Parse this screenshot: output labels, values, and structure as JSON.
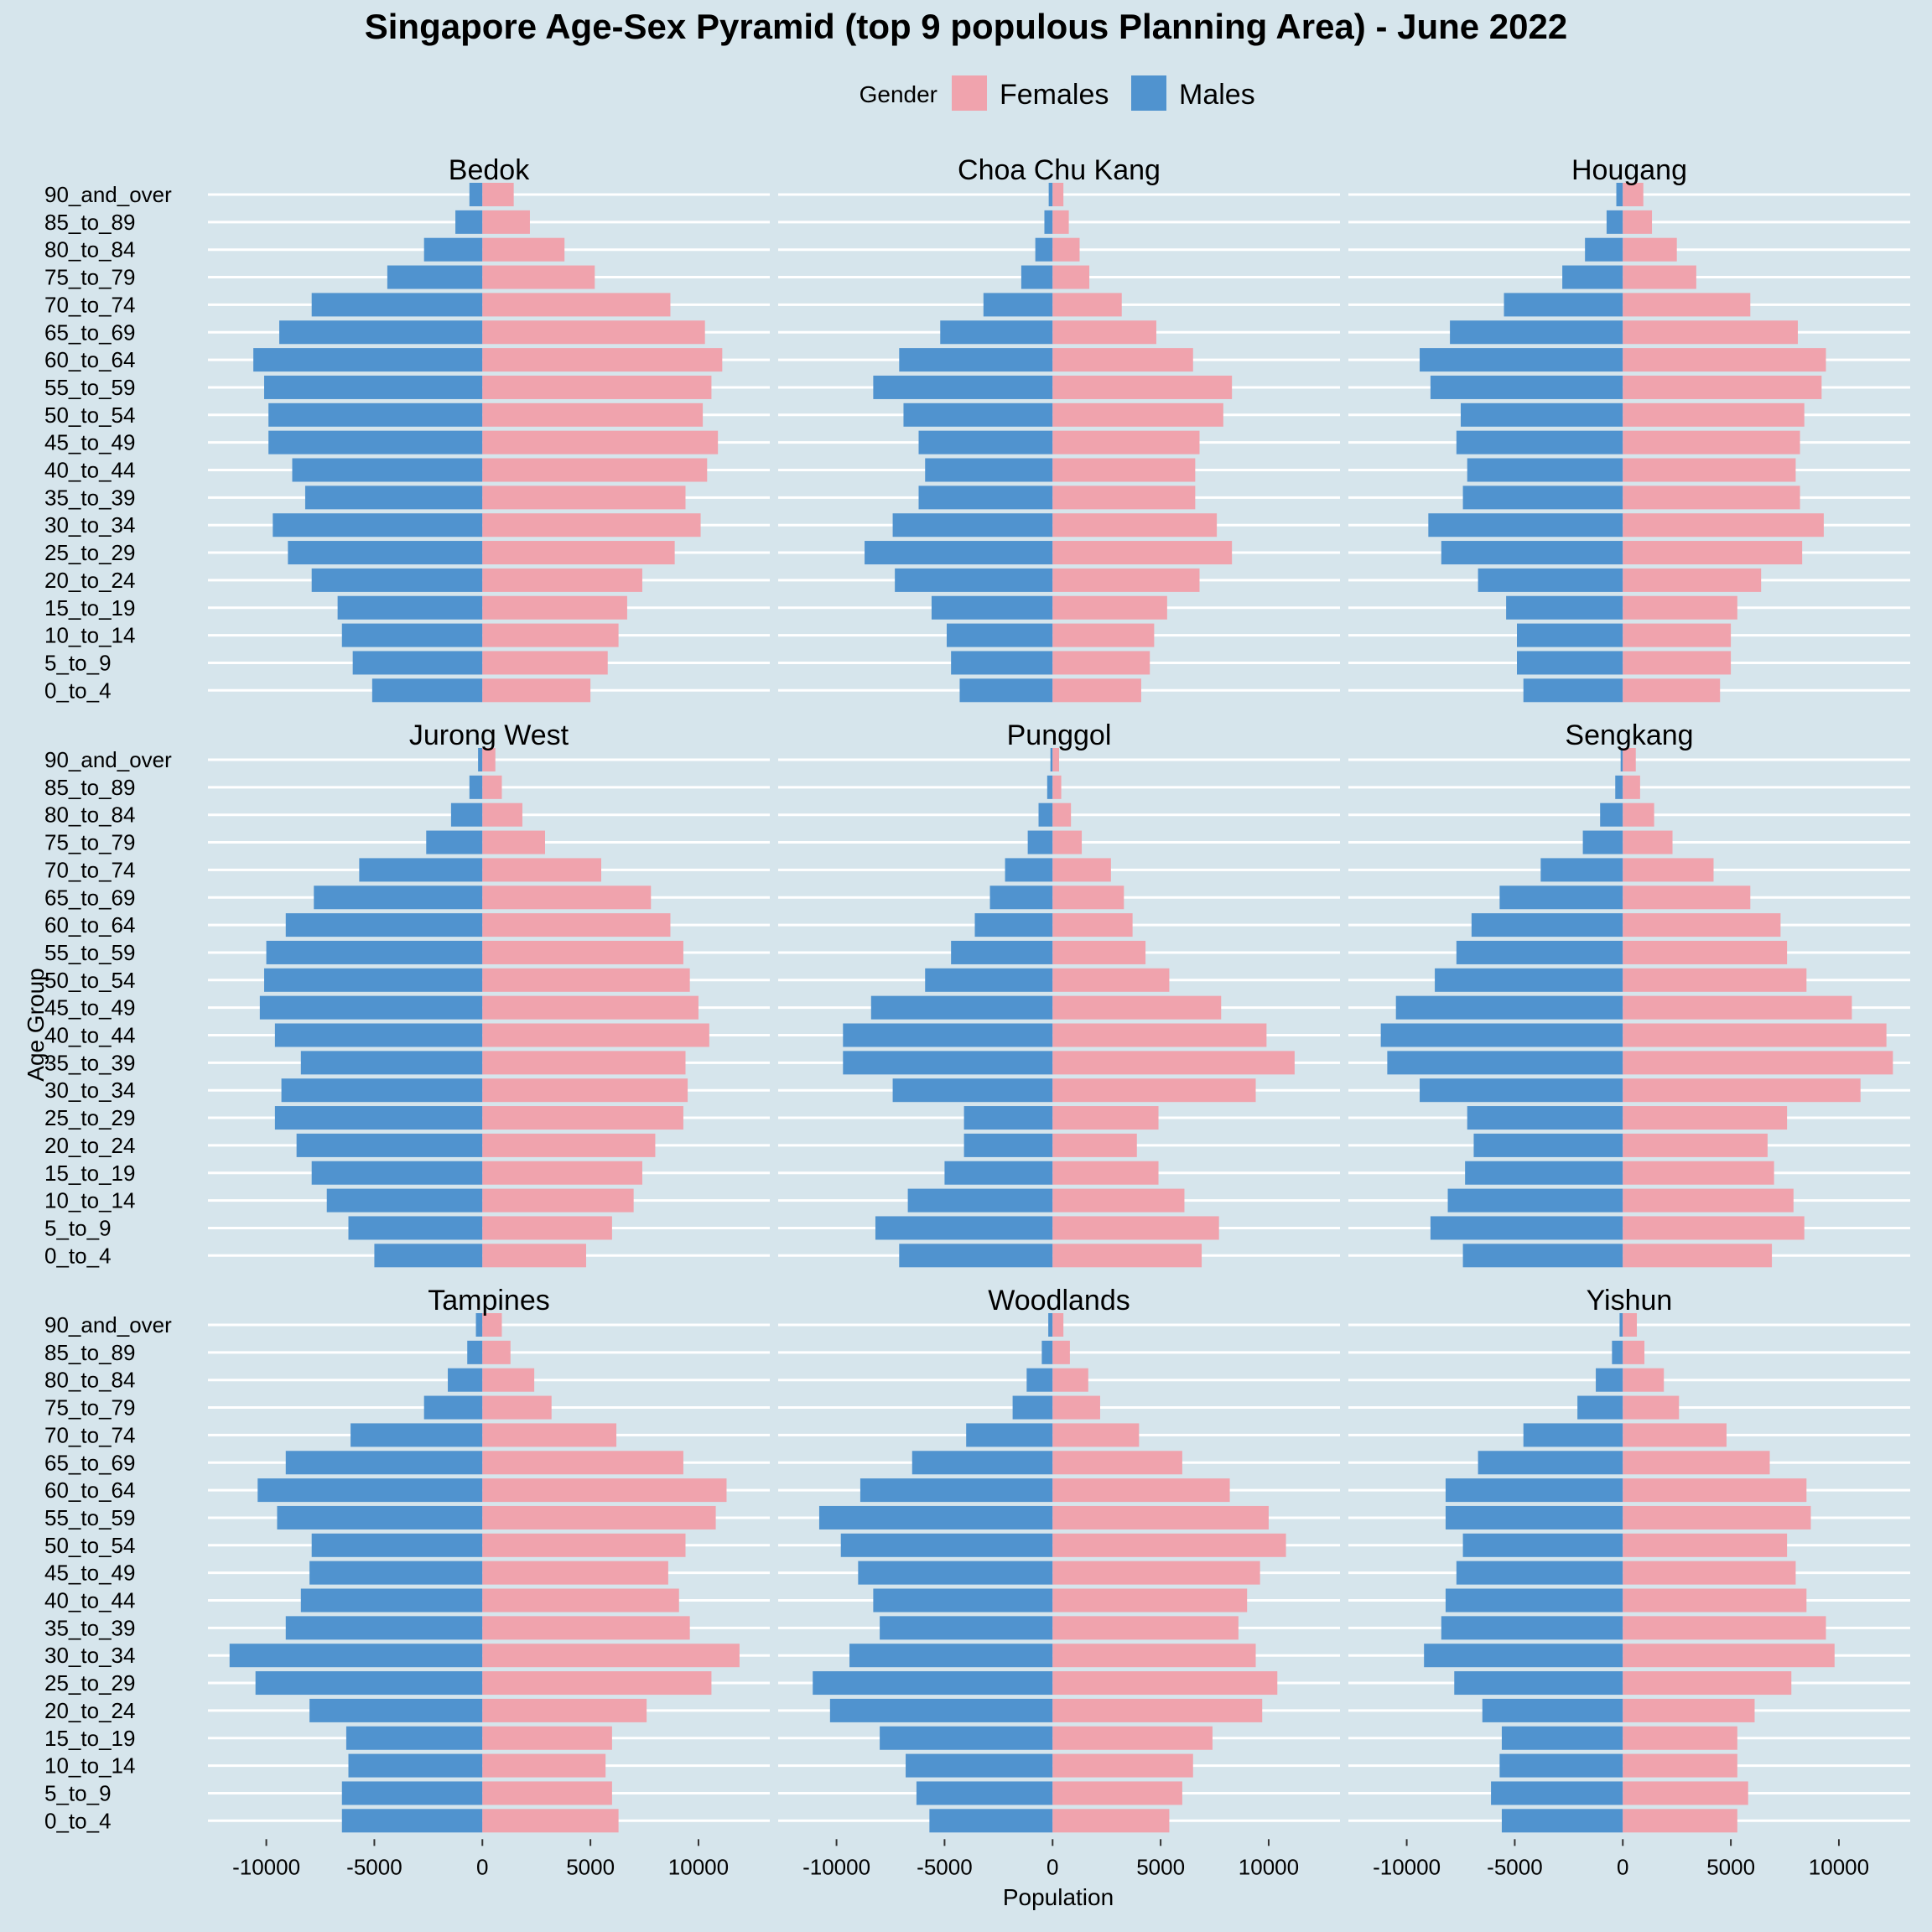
{
  "chart_data": {
    "type": "bar",
    "title": "Singapore Age-Sex Pyramid (top 9 populous Planning Area) - June 2022",
    "xlabel": "Population",
    "ylabel": "Age Group",
    "legend": {
      "title": "Gender",
      "position": "top",
      "entries": [
        {
          "name": "Females",
          "color": "#f0a3ad"
        },
        {
          "name": "Males",
          "color": "#5093cf"
        }
      ]
    },
    "age_groups": [
      "0_to_4",
      "5_to_9",
      "10_to_14",
      "15_to_19",
      "20_to_24",
      "25_to_29",
      "30_to_34",
      "35_to_39",
      "40_to_44",
      "45_to_49",
      "50_to_54",
      "55_to_59",
      "60_to_64",
      "65_to_69",
      "70_to_74",
      "75_to_79",
      "80_to_84",
      "85_to_89",
      "90_and_over"
    ],
    "x_ticks": [
      -10000,
      -5000,
      0,
      5000,
      10000
    ],
    "x_tick_labels": [
      "-10000",
      "-5000",
      "0",
      "5000",
      "10000"
    ],
    "xlim": [
      -12700,
      13300
    ],
    "grid": true,
    "panels": [
      {
        "name": "Bedok",
        "males": [
          5100,
          6000,
          6500,
          6700,
          7900,
          9000,
          9700,
          8200,
          8800,
          9900,
          9900,
          10100,
          10600,
          9400,
          7900,
          4400,
          2700,
          1250,
          600
        ],
        "females": [
          5000,
          5800,
          6300,
          6700,
          7400,
          8900,
          10100,
          9400,
          10400,
          10900,
          10200,
          10600,
          11100,
          10300,
          8700,
          5200,
          3800,
          2200,
          1450
        ]
      },
      {
        "name": "Choa Chu Kang",
        "males": [
          4300,
          4700,
          4900,
          5600,
          7300,
          8700,
          7400,
          6200,
          5900,
          6200,
          6900,
          8300,
          7100,
          5200,
          3200,
          1450,
          800,
          380,
          180
        ],
        "females": [
          4100,
          4500,
          4700,
          5300,
          6800,
          8300,
          7600,
          6600,
          6600,
          6800,
          7900,
          8300,
          6500,
          4800,
          3200,
          1700,
          1250,
          750,
          500
        ]
      },
      {
        "name": "Hougang",
        "males": [
          4600,
          4900,
          4900,
          5400,
          6700,
          8400,
          9000,
          7400,
          7200,
          7700,
          7500,
          8900,
          9400,
          8000,
          5500,
          2800,
          1750,
          750,
          300
        ],
        "females": [
          4500,
          5000,
          5000,
          5300,
          6400,
          8300,
          9300,
          8200,
          8000,
          8200,
          8400,
          9200,
          9400,
          8100,
          5900,
          3400,
          2500,
          1350,
          950
        ]
      },
      {
        "name": "Jurong West",
        "males": [
          5000,
          6200,
          7200,
          7900,
          8600,
          9600,
          9300,
          8400,
          9600,
          10300,
          10100,
          10000,
          9100,
          7800,
          5700,
          2600,
          1450,
          600,
          200
        ],
        "females": [
          4800,
          6000,
          7000,
          7400,
          8000,
          9300,
          9500,
          9400,
          10500,
          10000,
          9600,
          9300,
          8700,
          7800,
          5500,
          2900,
          1850,
          900,
          600
        ]
      },
      {
        "name": "Punggol",
        "males": [
          7100,
          8200,
          6700,
          5000,
          4100,
          4100,
          7400,
          9700,
          9700,
          8400,
          5900,
          4700,
          3600,
          2900,
          2200,
          1150,
          650,
          250,
          100
        ],
        "females": [
          6900,
          7700,
          6100,
          4900,
          3900,
          4900,
          9400,
          11200,
          9900,
          7800,
          5400,
          4300,
          3700,
          3300,
          2700,
          1350,
          850,
          400,
          300
        ]
      },
      {
        "name": "Sengkang",
        "males": [
          7400,
          8900,
          8100,
          7300,
          6900,
          7200,
          9400,
          10900,
          11200,
          10500,
          8700,
          7700,
          7000,
          5700,
          3800,
          1850,
          1050,
          350,
          100
        ],
        "females": [
          6900,
          8400,
          7900,
          7000,
          6700,
          7600,
          11000,
          12500,
          12200,
          10600,
          8500,
          7600,
          7300,
          5900,
          4200,
          2300,
          1450,
          800,
          600
        ]
      },
      {
        "name": "Tampines",
        "males": [
          6500,
          6500,
          6200,
          6300,
          8000,
          10500,
          11700,
          9100,
          8400,
          8000,
          7900,
          9500,
          10400,
          9100,
          6100,
          2700,
          1600,
          700,
          300
        ],
        "females": [
          6300,
          6000,
          5700,
          6000,
          7600,
          10600,
          11900,
          9600,
          9100,
          8600,
          9400,
          10800,
          11300,
          9300,
          6200,
          3200,
          2400,
          1300,
          900
        ]
      },
      {
        "name": "Woodlands",
        "males": [
          5700,
          6300,
          6800,
          8000,
          10300,
          11100,
          9400,
          8000,
          8300,
          9000,
          9800,
          10800,
          8900,
          6500,
          4000,
          1850,
          1200,
          500,
          200
        ],
        "females": [
          5400,
          6000,
          6500,
          7400,
          9700,
          10400,
          9400,
          8600,
          9000,
          9600,
          10800,
          10000,
          8200,
          6000,
          4000,
          2200,
          1650,
          800,
          500
        ]
      },
      {
        "name": "Yishun",
        "males": [
          5600,
          6100,
          5700,
          5600,
          6500,
          7800,
          9200,
          8400,
          8200,
          7700,
          7400,
          8200,
          8200,
          6700,
          4600,
          2100,
          1250,
          500,
          150
        ],
        "females": [
          5300,
          5800,
          5300,
          5300,
          6100,
          7800,
          9800,
          9400,
          8500,
          8000,
          7600,
          8700,
          8500,
          6800,
          4800,
          2600,
          1900,
          1000,
          650
        ]
      }
    ]
  }
}
